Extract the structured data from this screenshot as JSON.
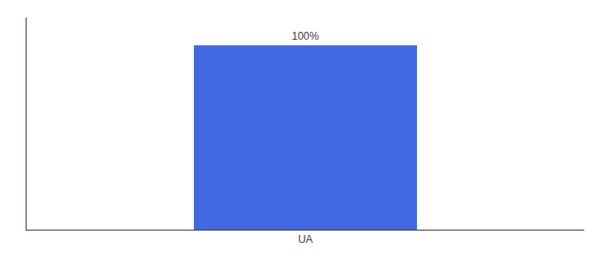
{
  "chart_data": {
    "type": "bar",
    "categories": [
      "UA"
    ],
    "values": [
      100
    ],
    "value_labels": [
      "100%"
    ],
    "data_labels": true,
    "color": "#4169E1",
    "ylim": [
      0,
      115
    ],
    "tick_labels": "x",
    "grid": false
  }
}
